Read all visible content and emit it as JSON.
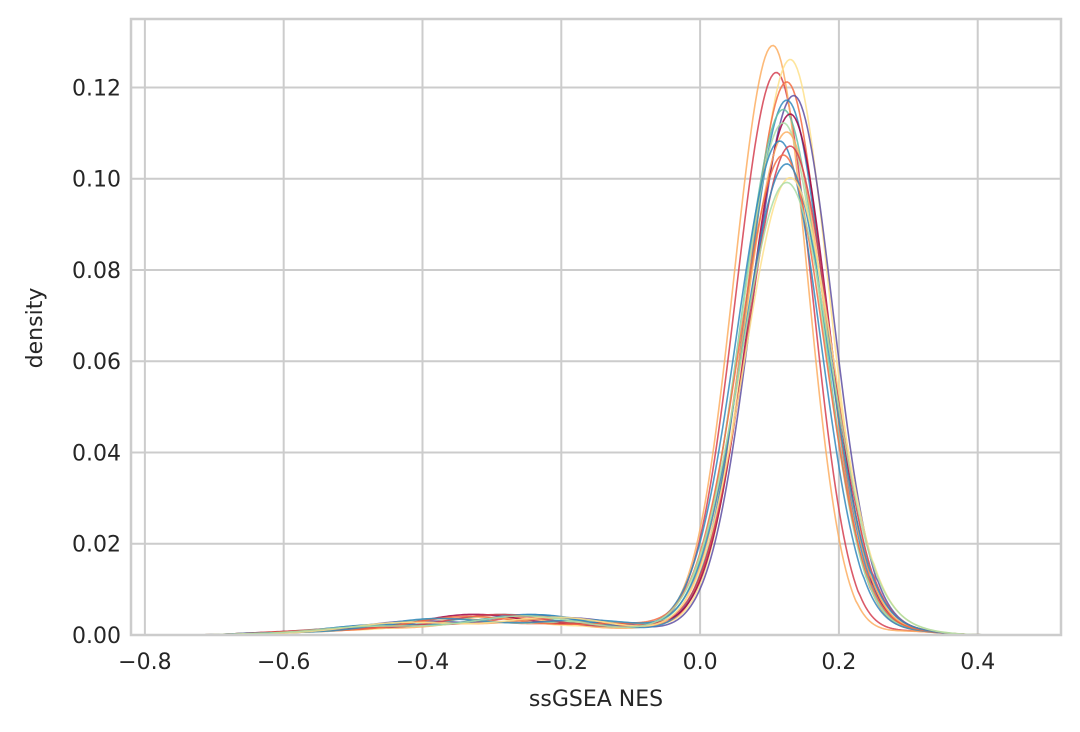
{
  "chart_data": {
    "type": "line",
    "title": "",
    "xlabel": "ssGSEA NES",
    "ylabel": "density",
    "xlim": [
      -0.82,
      0.52
    ],
    "ylim": [
      0.0,
      0.135
    ],
    "x_ticks": [
      -0.8,
      -0.6,
      -0.4,
      -0.2,
      0.0,
      0.2,
      0.4
    ],
    "x_tick_labels": [
      "−0.8",
      "−0.6",
      "−0.4",
      "−0.2",
      "0.0",
      "0.2",
      "0.4"
    ],
    "y_ticks": [
      0.0,
      0.02,
      0.04,
      0.06,
      0.08,
      0.1,
      0.12
    ],
    "y_tick_labels": [
      "0.00",
      "0.02",
      "0.04",
      "0.06",
      "0.08",
      "0.10",
      "0.12"
    ],
    "grid": true,
    "legend": "none",
    "colors": [
      "#9e0142",
      "#d53e4f",
      "#f46d43",
      "#fdae61",
      "#fee08b",
      "#e6f598",
      "#abdda4",
      "#66c2a5",
      "#3288bd",
      "#5e4fa2"
    ],
    "series": [
      {
        "peak_x": 0.11,
        "peak_y": 0.123,
        "sigma_l": 0.058,
        "sigma_r": 0.052,
        "tail": 0.0035,
        "color": "#d53e4f"
      },
      {
        "peak_x": 0.105,
        "peak_y": 0.129,
        "sigma_l": 0.056,
        "sigma_r": 0.05,
        "tail": 0.003,
        "color": "#fdae61"
      },
      {
        "peak_x": 0.13,
        "peak_y": 0.126,
        "sigma_l": 0.058,
        "sigma_r": 0.055,
        "tail": 0.0032,
        "color": "#fee08b"
      },
      {
        "peak_x": 0.125,
        "peak_y": 0.121,
        "sigma_l": 0.058,
        "sigma_r": 0.054,
        "tail": 0.0034,
        "color": "#f46d43"
      },
      {
        "peak_x": 0.135,
        "peak_y": 0.118,
        "sigma_l": 0.06,
        "sigma_r": 0.056,
        "tail": 0.0036,
        "color": "#5e4fa2"
      },
      {
        "peak_x": 0.125,
        "peak_y": 0.117,
        "sigma_l": 0.059,
        "sigma_r": 0.056,
        "tail": 0.0037,
        "color": "#3288bd"
      },
      {
        "peak_x": 0.12,
        "peak_y": 0.115,
        "sigma_l": 0.06,
        "sigma_r": 0.057,
        "tail": 0.0036,
        "color": "#66c2a5"
      },
      {
        "peak_x": 0.13,
        "peak_y": 0.114,
        "sigma_l": 0.06,
        "sigma_r": 0.055,
        "tail": 0.0038,
        "color": "#9e0142"
      },
      {
        "peak_x": 0.12,
        "peak_y": 0.112,
        "sigma_l": 0.061,
        "sigma_r": 0.057,
        "tail": 0.0035,
        "color": "#abdda4"
      },
      {
        "peak_x": 0.125,
        "peak_y": 0.11,
        "sigma_l": 0.062,
        "sigma_r": 0.058,
        "tail": 0.0034,
        "color": "#fdae61"
      },
      {
        "peak_x": 0.115,
        "peak_y": 0.108,
        "sigma_l": 0.062,
        "sigma_r": 0.058,
        "tail": 0.0037,
        "color": "#3288bd"
      },
      {
        "peak_x": 0.13,
        "peak_y": 0.107,
        "sigma_l": 0.062,
        "sigma_r": 0.058,
        "tail": 0.0036,
        "color": "#d53e4f"
      },
      {
        "peak_x": 0.12,
        "peak_y": 0.105,
        "sigma_l": 0.063,
        "sigma_r": 0.059,
        "tail": 0.0035,
        "color": "#f46d43"
      },
      {
        "peak_x": 0.125,
        "peak_y": 0.103,
        "sigma_l": 0.064,
        "sigma_r": 0.06,
        "tail": 0.0036,
        "color": "#3288bd"
      },
      {
        "peak_x": 0.13,
        "peak_y": 0.1,
        "sigma_l": 0.065,
        "sigma_r": 0.062,
        "tail": 0.0035,
        "color": "#fee08b"
      },
      {
        "peak_x": 0.125,
        "peak_y": 0.099,
        "sigma_l": 0.066,
        "sigma_r": 0.064,
        "tail": 0.0034,
        "color": "#abdda4"
      }
    ]
  }
}
